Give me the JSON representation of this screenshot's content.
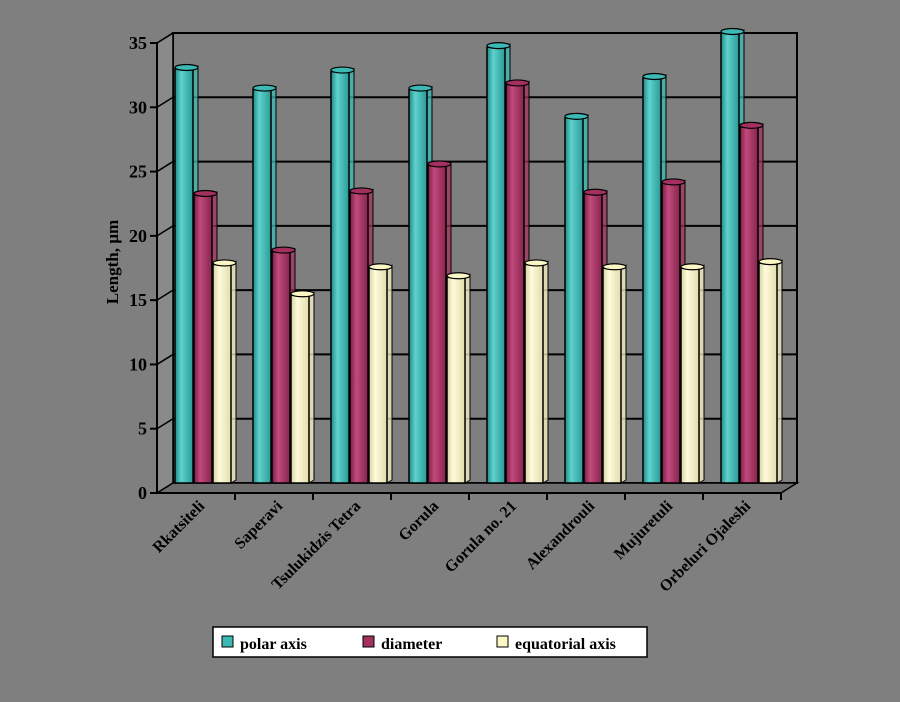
{
  "chart_data": {
    "type": "bar",
    "style": "3d-clustered",
    "title": "",
    "xlabel": "",
    "ylabel": "Length, µm",
    "ylim": [
      0,
      35
    ],
    "yticks": [
      0,
      5,
      10,
      15,
      20,
      25,
      30,
      35
    ],
    "grid": true,
    "legend_position": "bottom",
    "categories": [
      "Rkatsiteli",
      "Saperavi",
      "Tsulukidzis Tetra",
      "Gorula",
      "Gorula no. 21",
      "Alexandrouli",
      "Mujuretuli",
      "Orbeluri Ojaleshi"
    ],
    "series": [
      {
        "name": "polar axis",
        "color": "#3cb9b5",
        "values": [
          32.2,
          30.6,
          32.0,
          30.6,
          33.9,
          28.4,
          31.5,
          35.0
        ]
      },
      {
        "name": "diameter",
        "color": "#a3305e",
        "values": [
          22.4,
          18.0,
          22.6,
          24.7,
          31.0,
          22.5,
          23.3,
          27.7
        ]
      },
      {
        "name": "equatorial axis",
        "color": "#fbf6c5",
        "values": [
          17.0,
          14.6,
          16.7,
          16.0,
          17.0,
          16.7,
          16.7,
          17.1
        ]
      }
    ]
  }
}
